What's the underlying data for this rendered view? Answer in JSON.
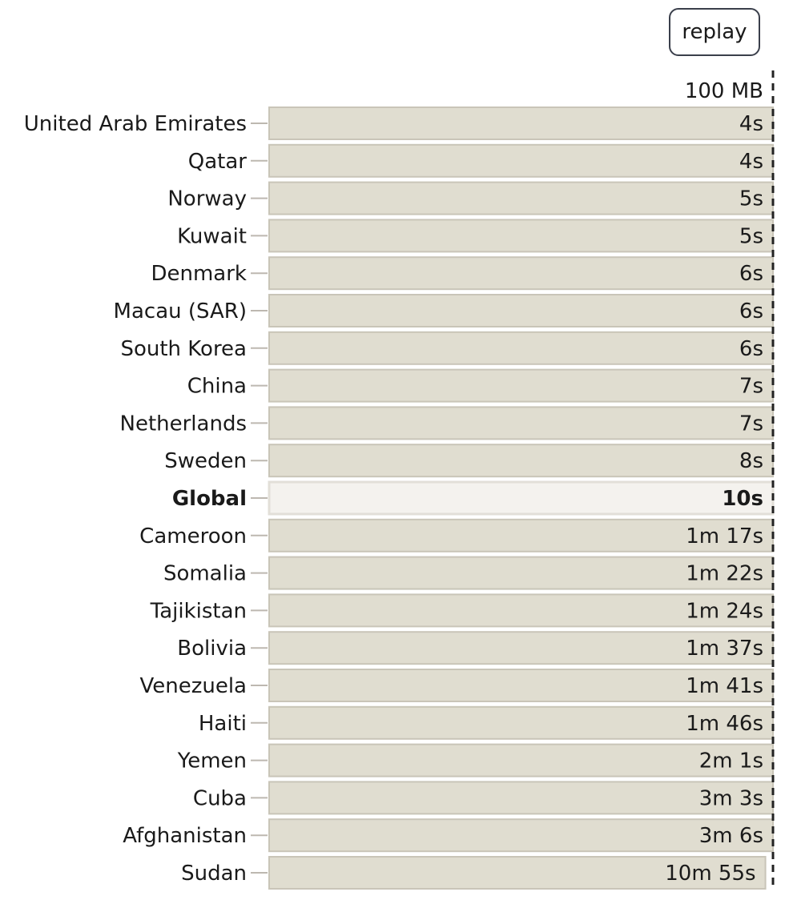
{
  "controls": {
    "replay_label": "replay"
  },
  "chart_data": {
    "type": "bar",
    "orientation": "horizontal",
    "title": "",
    "reference_line": {
      "label": "100 MB",
      "style": "dashed"
    },
    "highlight_category": "Global",
    "categories": [
      "United Arab Emirates",
      "Qatar",
      "Norway",
      "Kuwait",
      "Denmark",
      "Macau (SAR)",
      "South Korea",
      "China",
      "Netherlands",
      "Sweden",
      "Global",
      "Cameroon",
      "Somalia",
      "Tajikistan",
      "Bolivia",
      "Venezuela",
      "Haiti",
      "Yemen",
      "Cuba",
      "Afghanistan",
      "Sudan"
    ],
    "values": [
      4,
      4,
      5,
      5,
      6,
      6,
      6,
      7,
      7,
      8,
      10,
      77,
      82,
      84,
      97,
      101,
      106,
      121,
      183,
      186,
      655
    ],
    "value_labels": [
      "4s",
      "4s",
      "5s",
      "5s",
      "6s",
      "6s",
      "6s",
      "7s",
      "7s",
      "8s",
      "10s",
      "1m 17s",
      "1m 22s",
      "1m 24s",
      "1m 37s",
      "1m 41s",
      "1m 46s",
      "2m 1s",
      "3m 3s",
      "3m 6s",
      "10m 55s"
    ],
    "value_unit": "seconds",
    "colors": {
      "bar_fill": "#e0ddd0",
      "bar_stroke": "#c9c5b8",
      "highlight_fill": "#f4f2ee",
      "highlight_stroke": "#e2dfd8",
      "reference_line": "#222222",
      "tick": "#bdb8b0"
    }
  }
}
